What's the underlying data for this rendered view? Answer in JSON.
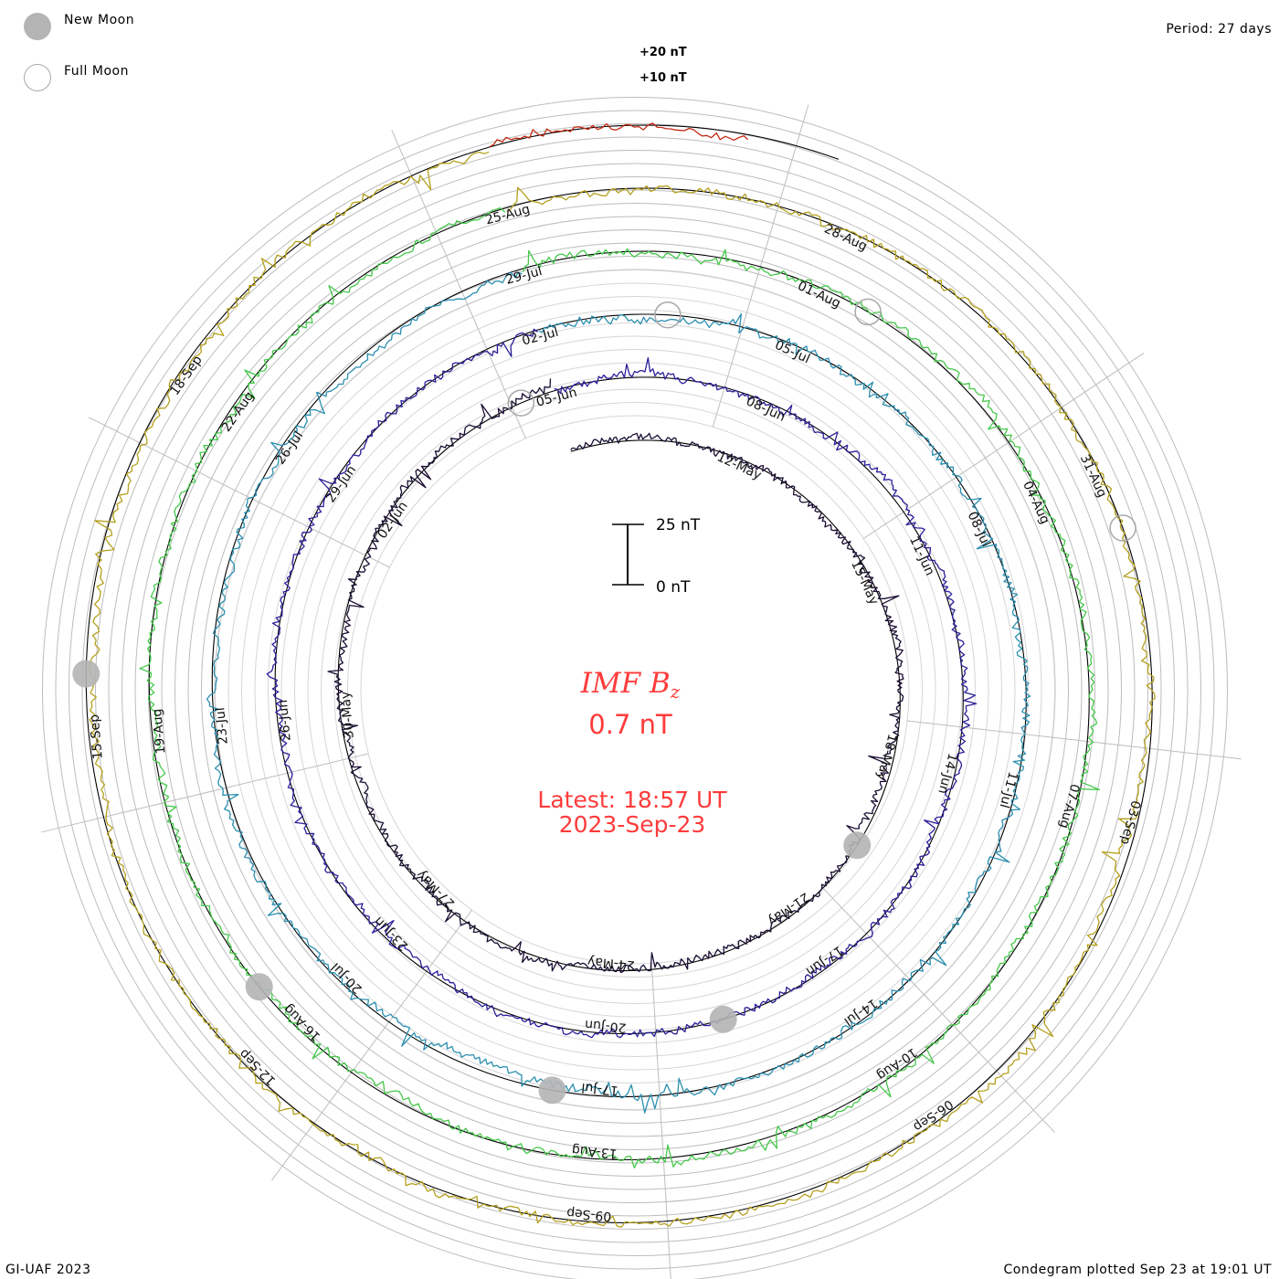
{
  "legend": {
    "new_moon": "New Moon",
    "full_moon": "Full Moon",
    "new_moon_color": "#b4b4b4",
    "full_moon_stroke": "#a8a8a8"
  },
  "header": {
    "period": "Period: 27 days"
  },
  "footer": {
    "credit": "GI-UAF 2023",
    "plotted": "Condegram plotted Sep 23 at 19:01 UT"
  },
  "center": {
    "parameter": "IMF B",
    "parameter_subscript": "z",
    "current_value": "0.7 nT",
    "latest_label": "Latest: 18:57 UT",
    "latest_date": "2023-Sep-23",
    "text_color": "#ff3b3b"
  },
  "chart_data": {
    "type": "spiral-line",
    "title": "IMF Bz",
    "period_days": 27,
    "start_date": "2023-05-09",
    "end_date": "2023-09-23",
    "latest_value_nT": 0.7,
    "scale_bar": {
      "top_label": "25 nT",
      "bottom_label": "0 nT",
      "top_value": 25,
      "bottom_value": 0
    },
    "outer_scale_labels": [
      "+20 nT",
      "+10 nT"
    ],
    "cycles": [
      {
        "start": "2023-05-09",
        "end": "2023-06-05",
        "color": "#1a0e33"
      },
      {
        "start": "2023-06-05",
        "end": "2023-07-02",
        "color": "#2a1f9a"
      },
      {
        "start": "2023-07-02",
        "end": "2023-07-29",
        "color": "#2b8fb0"
      },
      {
        "start": "2023-07-29",
        "end": "2023-08-25",
        "color": "#45c84a"
      },
      {
        "start": "2023-08-25",
        "end": "2023-09-21",
        "color": "#b5a01e"
      },
      {
        "start": "2023-09-21",
        "end": "2023-09-23",
        "color": "#c42a14"
      }
    ],
    "date_labels": [
      {
        "text": "12-May"
      },
      {
        "text": "15-May"
      },
      {
        "text": "18-May"
      },
      {
        "text": "21-May"
      },
      {
        "text": "24-May"
      },
      {
        "text": "27-May"
      },
      {
        "text": "30-May"
      },
      {
        "text": "02-Jun"
      },
      {
        "text": "05-Jun"
      },
      {
        "text": "08-Jun"
      },
      {
        "text": "11-Jun"
      },
      {
        "text": "14-Jun"
      },
      {
        "text": "17-Jun"
      },
      {
        "text": "20-Jun"
      },
      {
        "text": "23-Jun"
      },
      {
        "text": "26-Jun"
      },
      {
        "text": "29-Jun"
      },
      {
        "text": "02-Jul"
      },
      {
        "text": "05-Jul"
      },
      {
        "text": "08-Jul"
      },
      {
        "text": "11-Jul"
      },
      {
        "text": "14-Jul"
      },
      {
        "text": "17-Jul"
      },
      {
        "text": "20-Jul"
      },
      {
        "text": "23-Jul"
      },
      {
        "text": "26-Jul"
      },
      {
        "text": "29-Jul"
      },
      {
        "text": "01-Aug"
      },
      {
        "text": "04-Aug"
      },
      {
        "text": "07-Aug"
      },
      {
        "text": "10-Aug"
      },
      {
        "text": "13-Aug"
      },
      {
        "text": "16-Aug"
      },
      {
        "text": "19-Aug"
      },
      {
        "text": "22-Aug"
      },
      {
        "text": "25-Aug"
      },
      {
        "text": "28-Aug"
      },
      {
        "text": "31-Aug"
      },
      {
        "text": "03-Sep"
      },
      {
        "text": "06-Sep"
      },
      {
        "text": "09-Sep"
      },
      {
        "text": "12-Sep"
      },
      {
        "text": "15-Sep"
      },
      {
        "text": "18-Sep"
      }
    ],
    "new_moons": [
      "2023-05-19",
      "2023-06-18",
      "2023-07-17",
      "2023-08-16",
      "2023-09-15"
    ],
    "full_moons": [
      "2023-06-04",
      "2023-07-03",
      "2023-08-01",
      "2023-08-31"
    ]
  }
}
